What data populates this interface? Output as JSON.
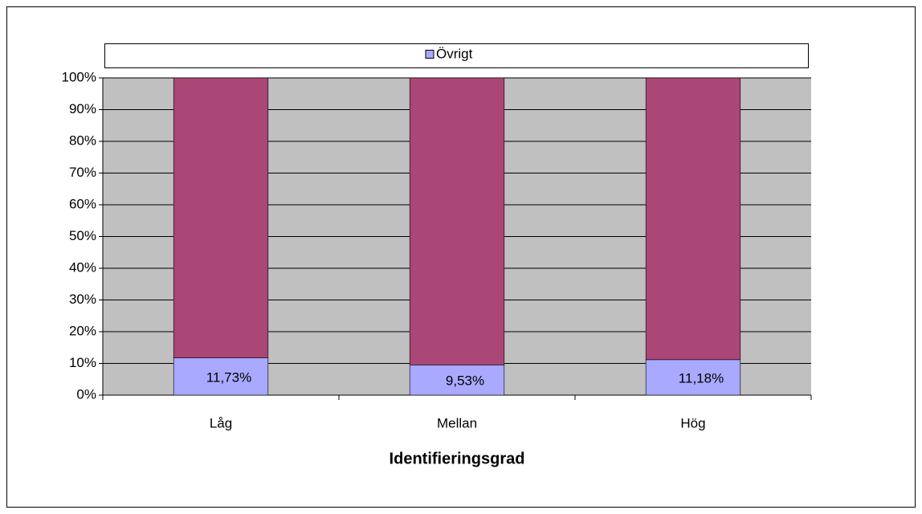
{
  "chart_data": {
    "type": "stacked_bar",
    "x_label": "Identifieringsgrad",
    "categories": [
      "Låg",
      "Mellan",
      "Hög"
    ],
    "series": [
      {
        "name": "Övrigt",
        "color": "#a9a9ff",
        "values": [
          11.73,
          9.53,
          11.18
        ],
        "value_labels": [
          "11,73%",
          "9,53%",
          "11,18%"
        ]
      },
      {
        "color": "#aa4777",
        "values": [
          88.27,
          90.47,
          88.82
        ]
      }
    ],
    "ylim": [
      0,
      100
    ],
    "yticks": [
      {
        "value": 0,
        "label": "0%"
      },
      {
        "value": 10,
        "label": "10%"
      },
      {
        "value": 20,
        "label": "20%"
      },
      {
        "value": 30,
        "label": "30%"
      },
      {
        "value": 40,
        "label": "40%"
      },
      {
        "value": 50,
        "label": "50%"
      },
      {
        "value": 60,
        "label": "60%"
      },
      {
        "value": 70,
        "label": "70%"
      },
      {
        "value": 80,
        "label": "80%"
      },
      {
        "value": 90,
        "label": "90%"
      },
      {
        "value": 100,
        "label": "100%"
      }
    ],
    "grid": true,
    "plot_background": "#c0c0c0",
    "legend": "top"
  }
}
